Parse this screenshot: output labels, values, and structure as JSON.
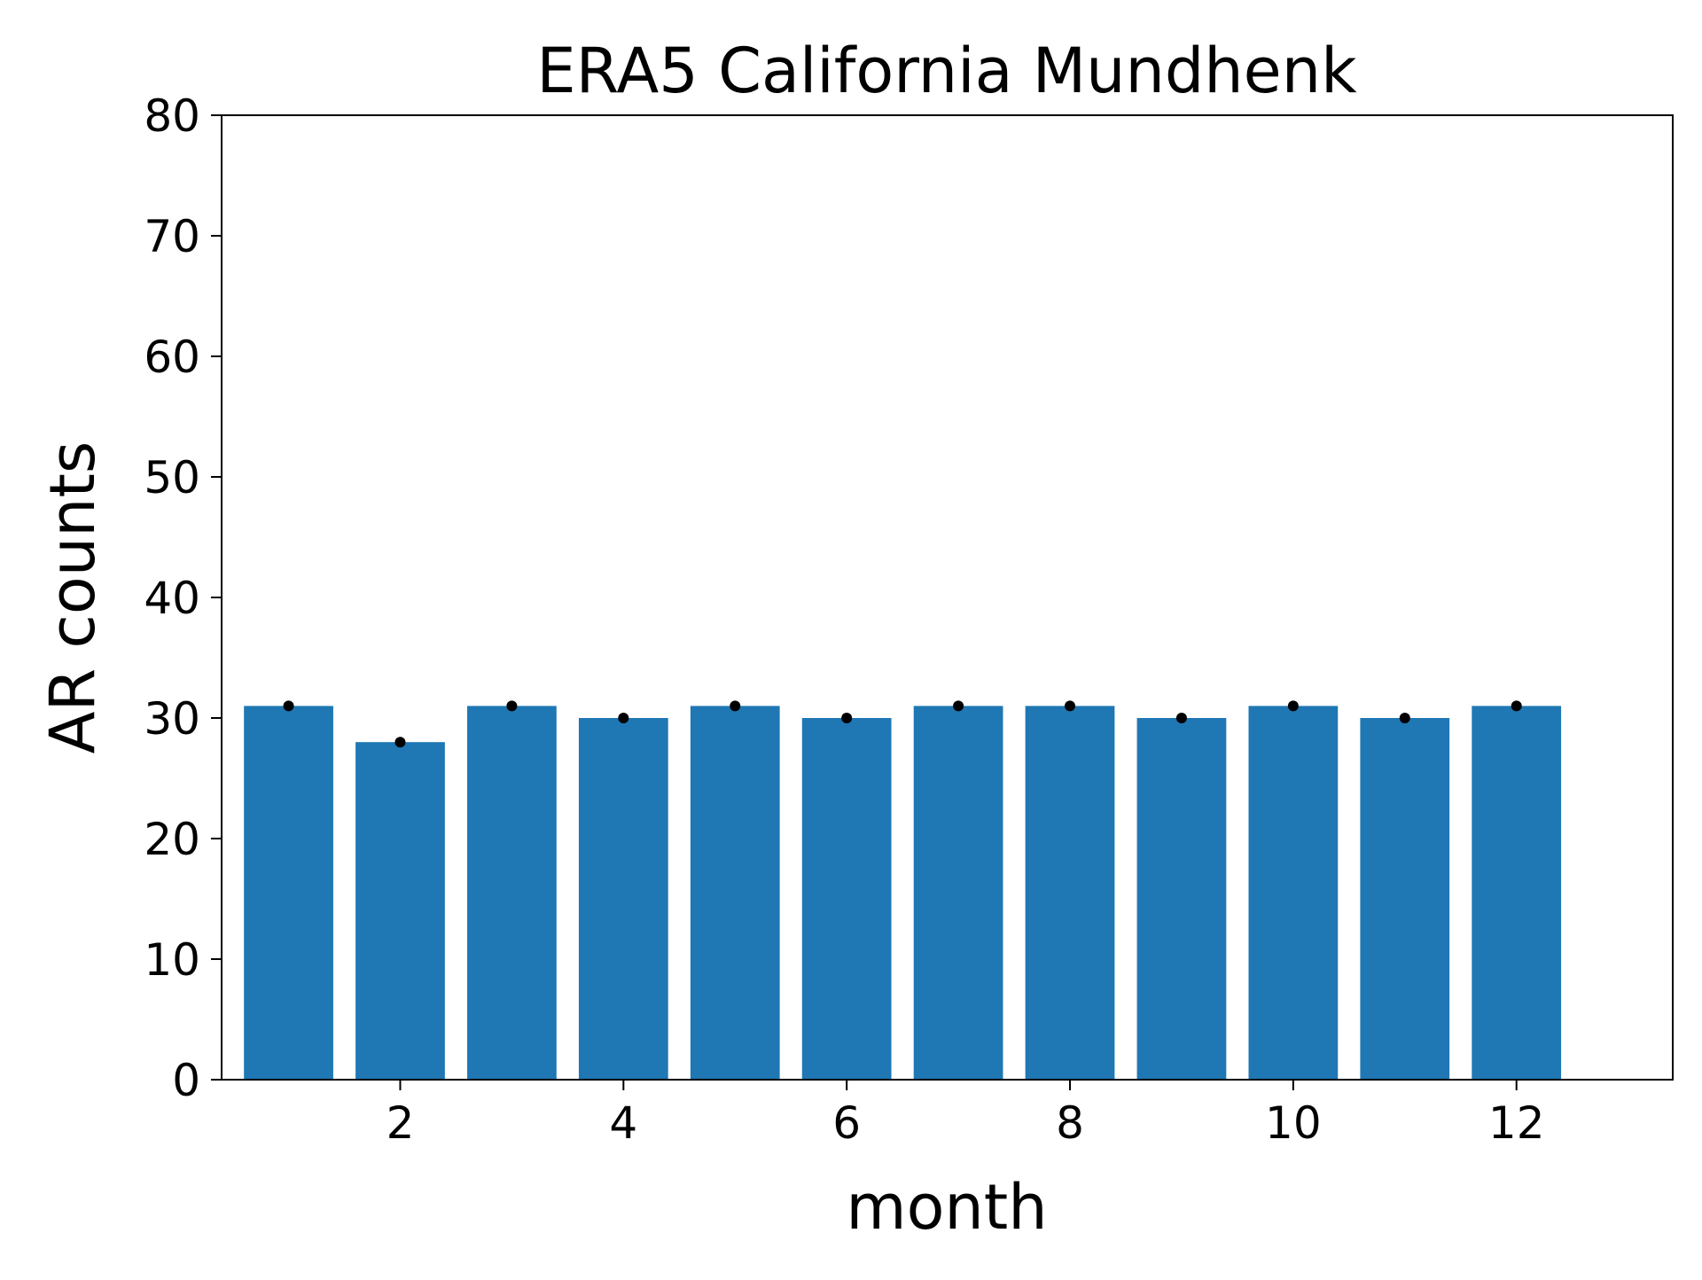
{
  "chart_data": {
    "type": "bar",
    "title": "ERA5  California  Mundhenk",
    "xlabel": "month",
    "ylabel": "AR counts",
    "x": [
      1,
      2,
      3,
      4,
      5,
      6,
      7,
      8,
      9,
      10,
      11,
      12
    ],
    "values": [
      31,
      28,
      31,
      30,
      31,
      30,
      31,
      31,
      30,
      31,
      30,
      31
    ],
    "markers": [
      31,
      28,
      31,
      30,
      31,
      30,
      31,
      31,
      30,
      31,
      30,
      31
    ],
    "xlim": [
      0.4,
      13.4
    ],
    "ylim": [
      0,
      80
    ],
    "xticks": [
      2,
      4,
      6,
      8,
      10,
      12
    ],
    "xtick_labels": [
      "2",
      "4",
      "6",
      "8",
      "10",
      "12"
    ],
    "yticks": [
      0,
      10,
      20,
      30,
      40,
      50,
      60,
      70,
      80
    ],
    "ytick_labels": [
      "0",
      "10",
      "20",
      "30",
      "40",
      "50",
      "60",
      "70",
      "80"
    ],
    "grid": false,
    "bar_color": "#1f77b4",
    "marker_color": "#000000"
  }
}
